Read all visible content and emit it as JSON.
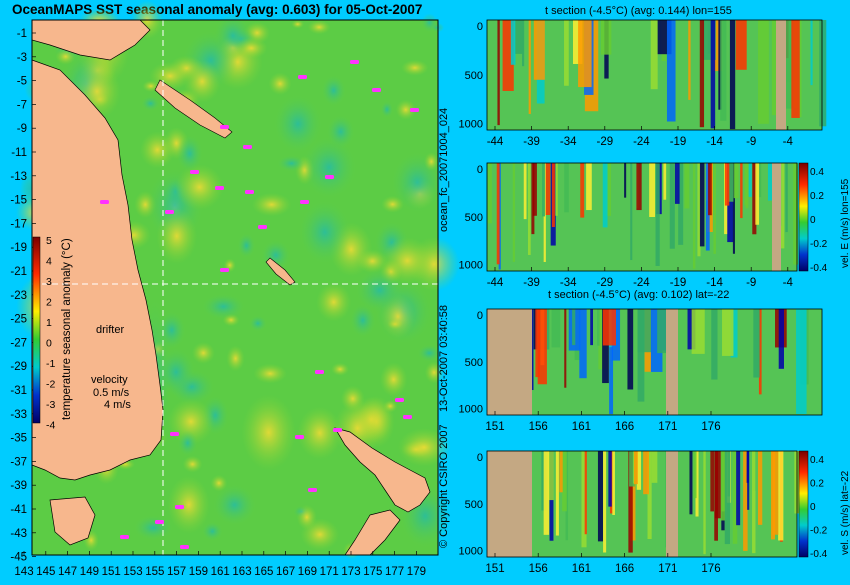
{
  "title": "OceanMAPS SST seasonal anomaly (avg: 0.603) for 05-Oct-2007",
  "map": {
    "lat_labels": [
      "-1",
      "-3",
      "-5",
      "-7",
      "-9",
      "-11",
      "-13",
      "-15",
      "-17",
      "-19",
      "-21",
      "-23",
      "-25",
      "-27",
      "-29",
      "-31",
      "-33",
      "-35",
      "-37",
      "-39",
      "-41",
      "-43",
      "-45"
    ],
    "lon_labels": [
      "143",
      "145",
      "147",
      "149",
      "151",
      "153",
      "155",
      "157",
      "159",
      "161",
      "163",
      "165",
      "167",
      "169",
      "171",
      "173",
      "175",
      "177",
      "179"
    ],
    "drifter_label": "drifter",
    "velocity_label": "velocity",
    "velocity_value": "0.5 m/s",
    "velocity_value2": "4 m/s",
    "colorbar_label": "temperature seasonal anomaly (°C)",
    "colorbar_ticks": [
      "5",
      "4",
      "3",
      "2",
      "1",
      "0",
      "-1",
      "-2",
      "-3",
      "-4"
    ]
  },
  "side_text": {
    "run_id": "ocean_fc_20071004_024",
    "timestamp": "13-Oct-2007 03:40:58",
    "copyright": "© Copyright CSIRO 2007"
  },
  "colors": {
    "background": "#00ccff",
    "land": "#f7b78d",
    "section_land": "#c4a883",
    "drifter": "#ff33ff"
  },
  "chart_data": [
    {
      "type": "heatmap",
      "title": "t section (-4.5°C) (avg: 0.144) lon=155",
      "xlabel": "",
      "ylabel": "",
      "x_ticks": [
        "-44",
        "-39",
        "-34",
        "-29",
        "-24",
        "-19",
        "-14",
        "-9",
        "-4"
      ],
      "y_ticks": [
        "0",
        "500",
        "1000"
      ],
      "ylim": [
        1000,
        0
      ]
    },
    {
      "type": "heatmap",
      "title": "",
      "ylabel": "vel. E (m/s) lon=155",
      "x_ticks": [
        "-44",
        "-39",
        "-34",
        "-29",
        "-24",
        "-19",
        "-14",
        "-9",
        "-4"
      ],
      "y_ticks": [
        "0",
        "500",
        "1000"
      ],
      "colorbar_ticks": [
        "0.4",
        "0.2",
        "0",
        "-0.2",
        "-0.4"
      ]
    },
    {
      "type": "heatmap",
      "title": "t section (-4.5°C) (avg: 0.102) lat=-22",
      "x_ticks": [
        "151",
        "156",
        "161",
        "166",
        "171",
        "176"
      ],
      "y_ticks": [
        "0",
        "500",
        "1000"
      ]
    },
    {
      "type": "heatmap",
      "title": "",
      "ylabel": "vel. S (m/s) lat=-22",
      "x_ticks": [
        "151",
        "156",
        "161",
        "166",
        "171",
        "176"
      ],
      "y_ticks": [
        "0",
        "500",
        "1000"
      ],
      "colorbar_ticks": [
        "0.4",
        "0.2",
        "0",
        "-0.2",
        "-0.4"
      ]
    }
  ]
}
